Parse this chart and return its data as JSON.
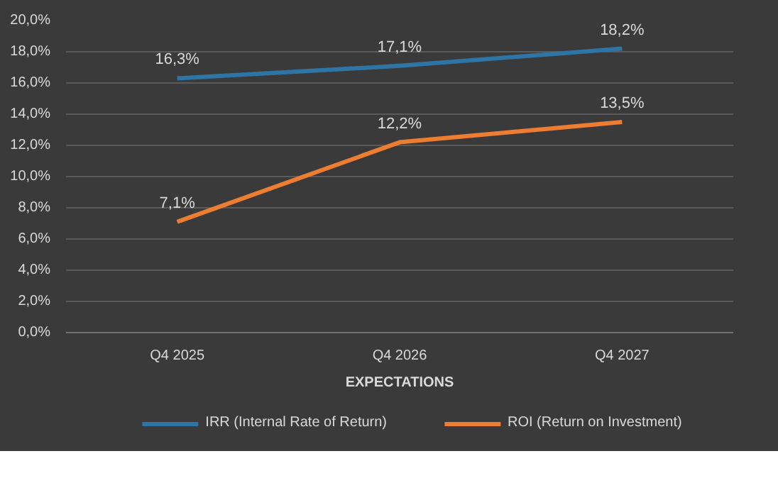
{
  "chart_data": {
    "type": "line",
    "xlabel": "EXPECTATIONS",
    "categories": [
      "Q4 2025",
      "Q4 2026",
      "Q4 2027"
    ],
    "series": [
      {
        "name": "IRR (Internal Rate of Return)",
        "color": "#2e75a6",
        "values": [
          16.3,
          17.1,
          18.2
        ],
        "value_labels": [
          "16,3%",
          "17,1%",
          "18,2%"
        ]
      },
      {
        "name": "ROI (Return on Investment)",
        "color": "#ed7d31",
        "values": [
          7.1,
          12.2,
          13.5
        ],
        "value_labels": [
          "7,1%",
          "12,2%",
          "13,5%"
        ]
      }
    ],
    "ylim": [
      0,
      20
    ],
    "yticks": [
      {
        "value": 0,
        "label": "0,0%"
      },
      {
        "value": 2,
        "label": "2,0%"
      },
      {
        "value": 4,
        "label": "4,0%"
      },
      {
        "value": 6,
        "label": "6,0%"
      },
      {
        "value": 8,
        "label": "8,0%"
      },
      {
        "value": 10,
        "label": "10,0%"
      },
      {
        "value": 12,
        "label": "12,0%"
      },
      {
        "value": 14,
        "label": "14,0%"
      },
      {
        "value": 16,
        "label": "16,0%"
      },
      {
        "value": 18,
        "label": "18,0%"
      },
      {
        "value": 20,
        "label": "20,0%"
      }
    ],
    "grid": "y",
    "legend": "bottom",
    "marker": "none",
    "line_style": "solid"
  }
}
